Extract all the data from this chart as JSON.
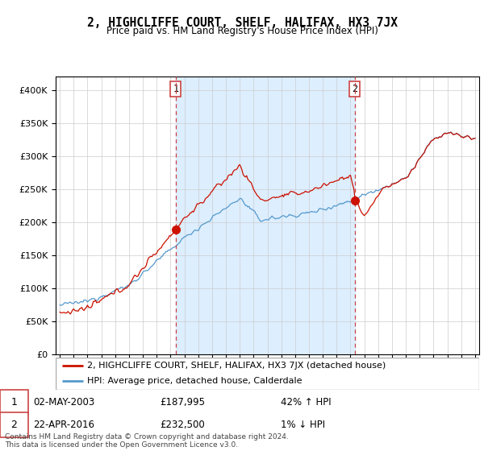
{
  "title": "2, HIGHCLIFFE COURT, SHELF, HALIFAX, HX3 7JX",
  "subtitle": "Price paid vs. HM Land Registry's House Price Index (HPI)",
  "legend_line1": "2, HIGHCLIFFE COURT, SHELF, HALIFAX, HX3 7JX (detached house)",
  "legend_line2": "HPI: Average price, detached house, Calderdale",
  "transaction1_date": "02-MAY-2003",
  "transaction1_price": "£187,995",
  "transaction1_hpi": "42% ↑ HPI",
  "transaction2_date": "22-APR-2016",
  "transaction2_price": "£232,500",
  "transaction2_hpi": "1% ↓ HPI",
  "footer": "Contains HM Land Registry data © Crown copyright and database right 2024.\nThis data is licensed under the Open Government Licence v3.0.",
  "hpi_color": "#5599cc",
  "price_color": "#cc1100",
  "dashed_color": "#cc4444",
  "shade_color": "#ddeeff",
  "background_color": "#ffffff",
  "grid_color": "#cccccc",
  "ylim": [
    0,
    420000
  ],
  "yticks": [
    0,
    50000,
    100000,
    150000,
    200000,
    250000,
    300000,
    350000,
    400000
  ],
  "transaction1_x": 2003.37,
  "transaction1_y": 187995,
  "transaction2_x": 2016.31,
  "transaction2_y": 232500,
  "xlim_start": 1994.7,
  "xlim_end": 2025.3
}
